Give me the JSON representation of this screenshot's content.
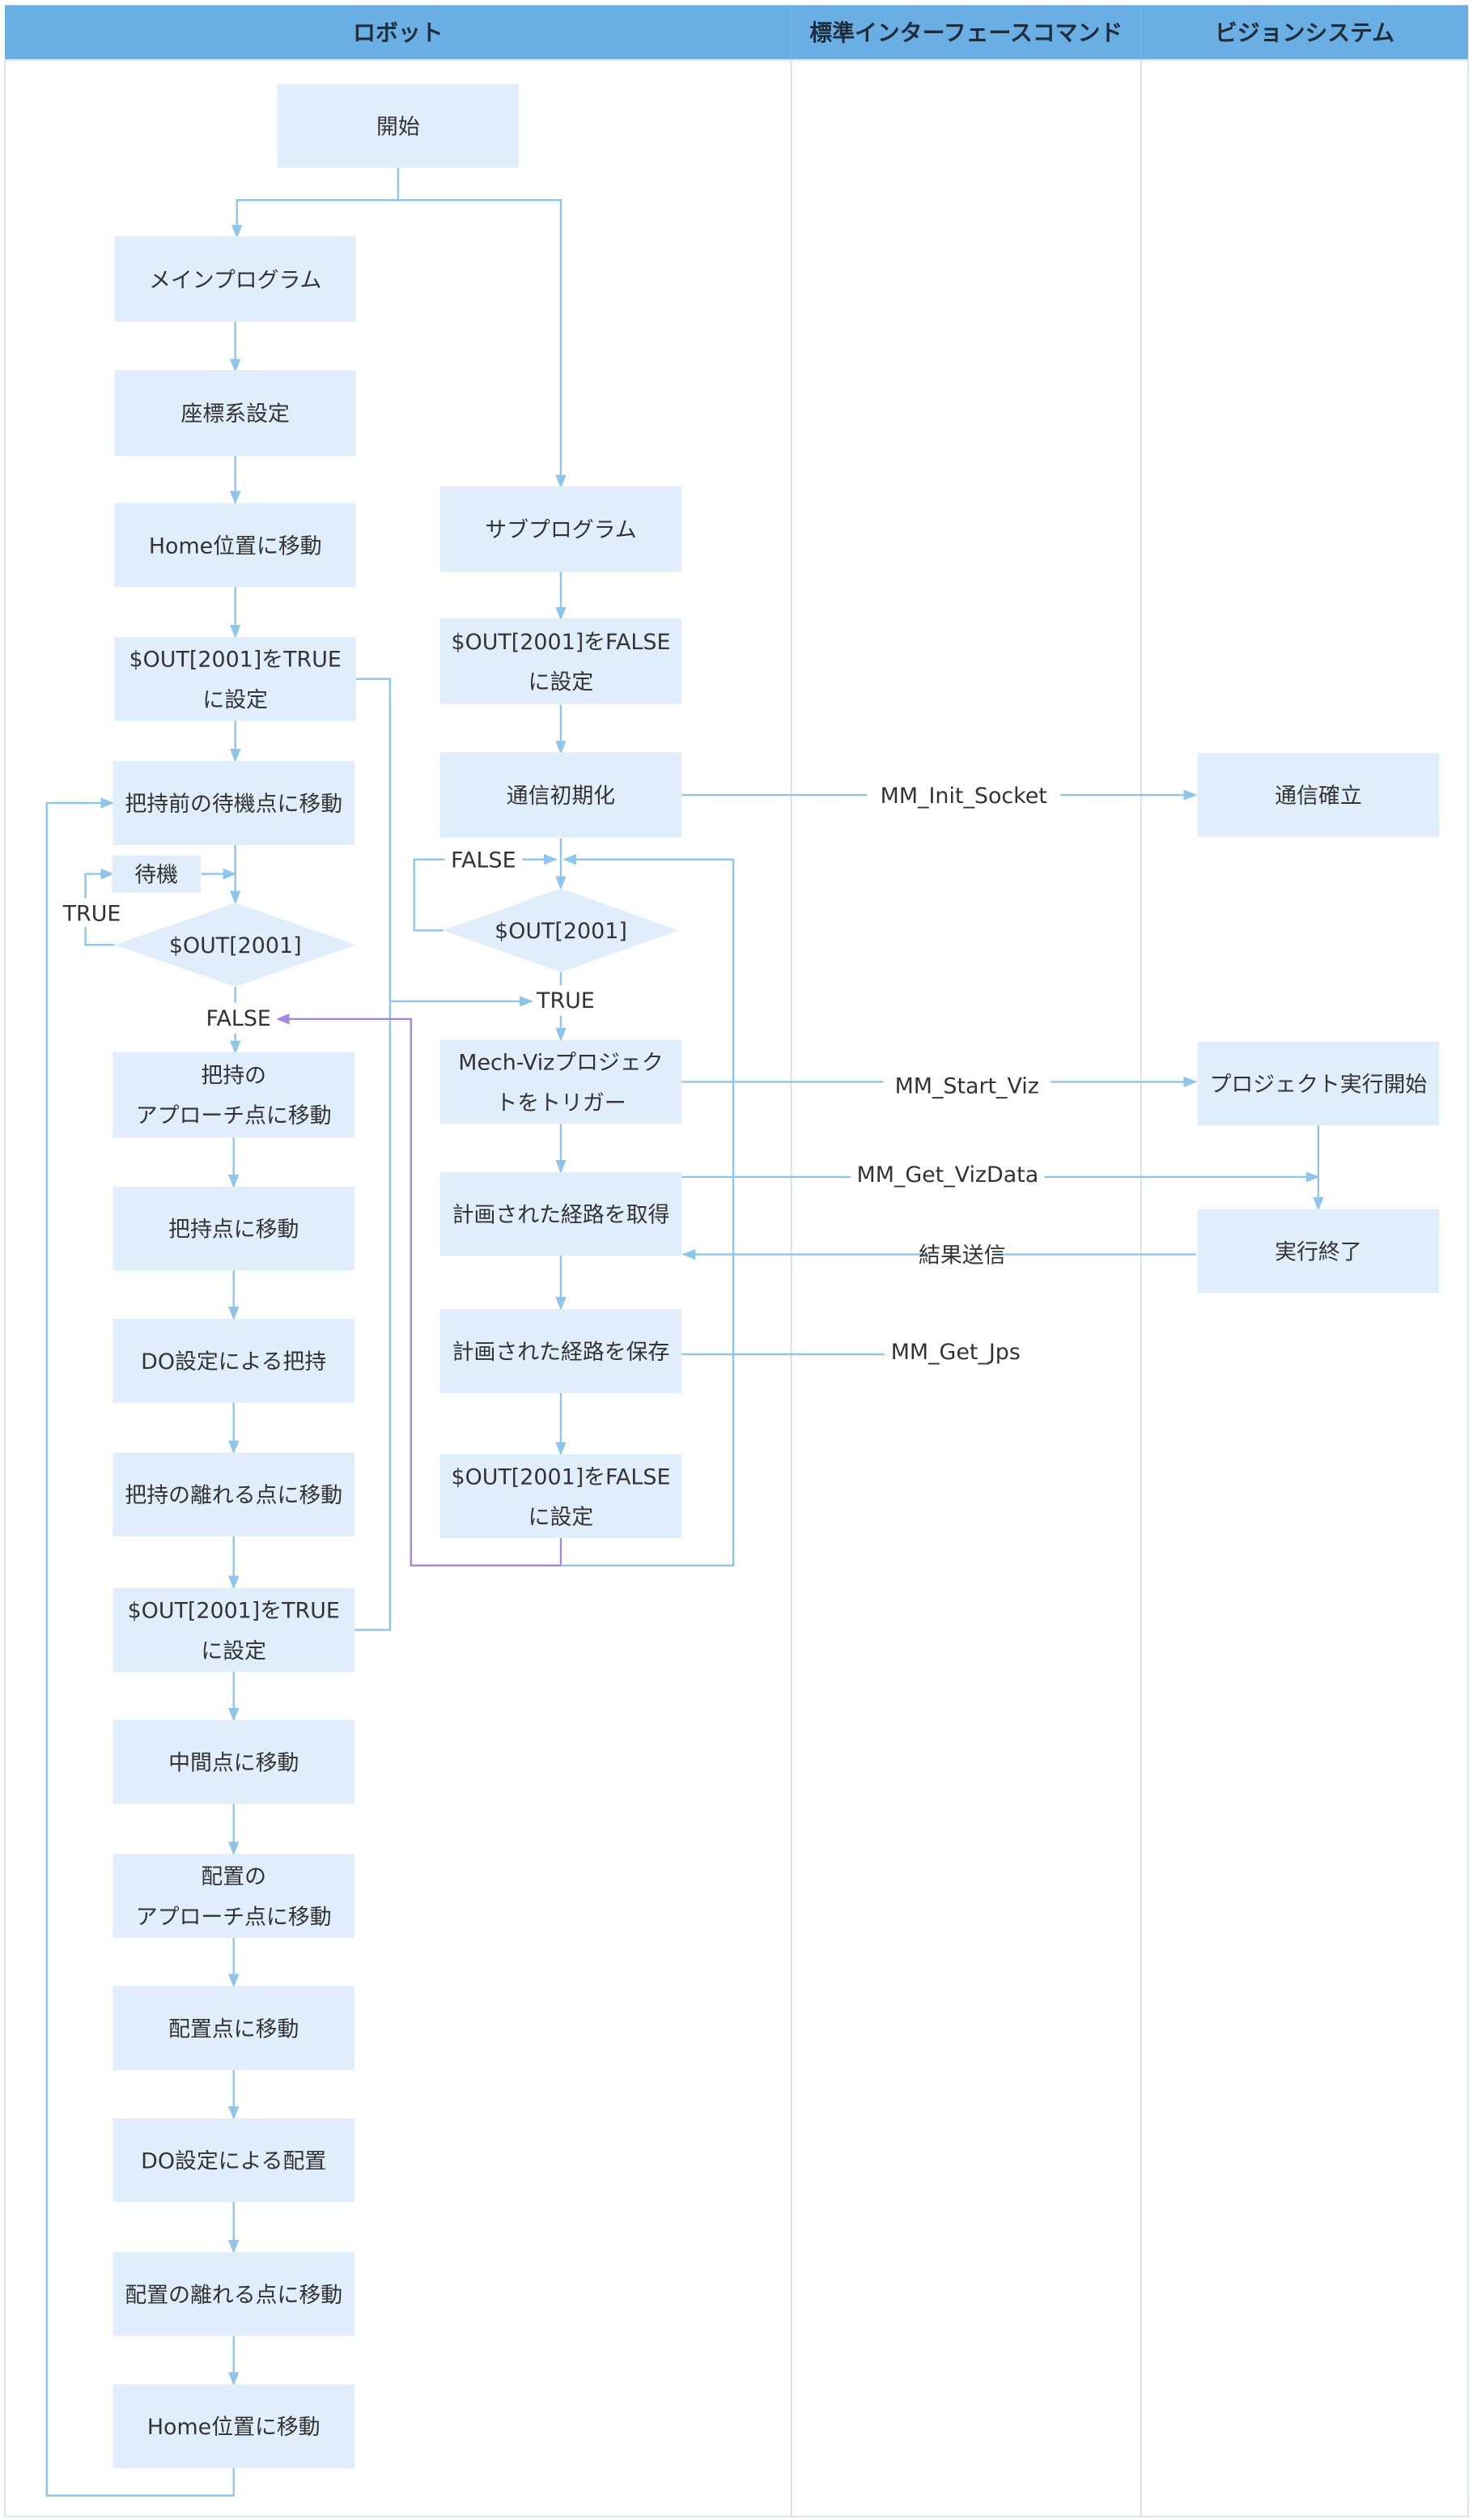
{
  "lanes": [
    {
      "id": "robot",
      "title": "ロボット"
    },
    {
      "id": "std",
      "title": "標準インターフェースコマンド"
    },
    {
      "id": "vision",
      "title": "ビジョンシステム"
    }
  ],
  "colors": {
    "header": "#6aafe3",
    "box": "#dfeefa",
    "line": "#8ec5ec",
    "return_line": "#a486e0",
    "text": "#333333",
    "grid": "#dde3e8"
  },
  "nodes": [
    {
      "id": "start",
      "lines": [
        "開始"
      ],
      "shape": "rect"
    },
    {
      "id": "main",
      "lines": [
        "メインプログラム"
      ],
      "shape": "rect"
    },
    {
      "id": "coord",
      "lines": [
        "座標系設定"
      ],
      "shape": "rect"
    },
    {
      "id": "home1",
      "lines": [
        "Home位置に移動"
      ],
      "shape": "rect"
    },
    {
      "id": "settrue1",
      "lines": [
        "$OUT[2001]をTRUE",
        "に設定"
      ],
      "shape": "rect"
    },
    {
      "id": "prewait",
      "lines": [
        "把持前の待機点に移動"
      ],
      "shape": "rect"
    },
    {
      "id": "wait",
      "lines": [
        "待機"
      ],
      "shape": "rect"
    },
    {
      "id": "dec1",
      "lines": [
        "$OUT[2001]"
      ],
      "shape": "diamond"
    },
    {
      "id": "pickapp",
      "lines": [
        "把持の",
        "アプローチ点に移動"
      ],
      "shape": "rect"
    },
    {
      "id": "pick",
      "lines": [
        "把持点に移動"
      ],
      "shape": "rect"
    },
    {
      "id": "grip",
      "lines": [
        "DO設定による把持"
      ],
      "shape": "rect"
    },
    {
      "id": "pickdep",
      "lines": [
        "把持の離れる点に移動"
      ],
      "shape": "rect"
    },
    {
      "id": "settrue2",
      "lines": [
        "$OUT[2001]をTRUE",
        "に設定"
      ],
      "shape": "rect"
    },
    {
      "id": "mid",
      "lines": [
        "中間点に移動"
      ],
      "shape": "rect"
    },
    {
      "id": "placeapp",
      "lines": [
        "配置の",
        "アプローチ点に移動"
      ],
      "shape": "rect"
    },
    {
      "id": "place",
      "lines": [
        "配置点に移動"
      ],
      "shape": "rect"
    },
    {
      "id": "release",
      "lines": [
        "DO設定による配置"
      ],
      "shape": "rect"
    },
    {
      "id": "placedep",
      "lines": [
        "配置の離れる点に移動"
      ],
      "shape": "rect"
    },
    {
      "id": "home2",
      "lines": [
        "Home位置に移動"
      ],
      "shape": "rect"
    },
    {
      "id": "sub",
      "lines": [
        "サブプログラム"
      ],
      "shape": "rect"
    },
    {
      "id": "setfalse1",
      "lines": [
        "$OUT[2001]をFALSE",
        "に設定"
      ],
      "shape": "rect"
    },
    {
      "id": "init",
      "lines": [
        "通信初期化"
      ],
      "shape": "rect"
    },
    {
      "id": "dec2",
      "lines": [
        "$OUT[2001]"
      ],
      "shape": "diamond"
    },
    {
      "id": "trigger",
      "lines": [
        "Mech-Vizプロジェク",
        "トをトリガー"
      ],
      "shape": "rect"
    },
    {
      "id": "getpath",
      "lines": [
        "計画された経路を取得"
      ],
      "shape": "rect"
    },
    {
      "id": "savepath",
      "lines": [
        "計画された経路を保存"
      ],
      "shape": "rect"
    },
    {
      "id": "setfalse2",
      "lines": [
        "$OUT[2001]をFALSE",
        "に設定"
      ],
      "shape": "rect"
    },
    {
      "id": "connect",
      "lines": [
        "通信確立"
      ],
      "shape": "rect"
    },
    {
      "id": "runstart",
      "lines": [
        "プロジェクト実行開始"
      ],
      "shape": "rect"
    },
    {
      "id": "runend",
      "lines": [
        "実行終了"
      ],
      "shape": "rect"
    }
  ],
  "edge_labels": [
    {
      "id": "true1",
      "text": "TRUE"
    },
    {
      "id": "false1",
      "text": "FALSE"
    },
    {
      "id": "false2",
      "text": "FALSE"
    },
    {
      "id": "true2",
      "text": "TRUE"
    },
    {
      "id": "cmd_init",
      "text": "MM_Init_Socket"
    },
    {
      "id": "cmd_start",
      "text": "MM_Start_Viz"
    },
    {
      "id": "cmd_getviz",
      "text": "MM_Get_VizData"
    },
    {
      "id": "result",
      "text": "結果送信"
    },
    {
      "id": "cmd_jps",
      "text": "MM_Get_Jps"
    }
  ]
}
